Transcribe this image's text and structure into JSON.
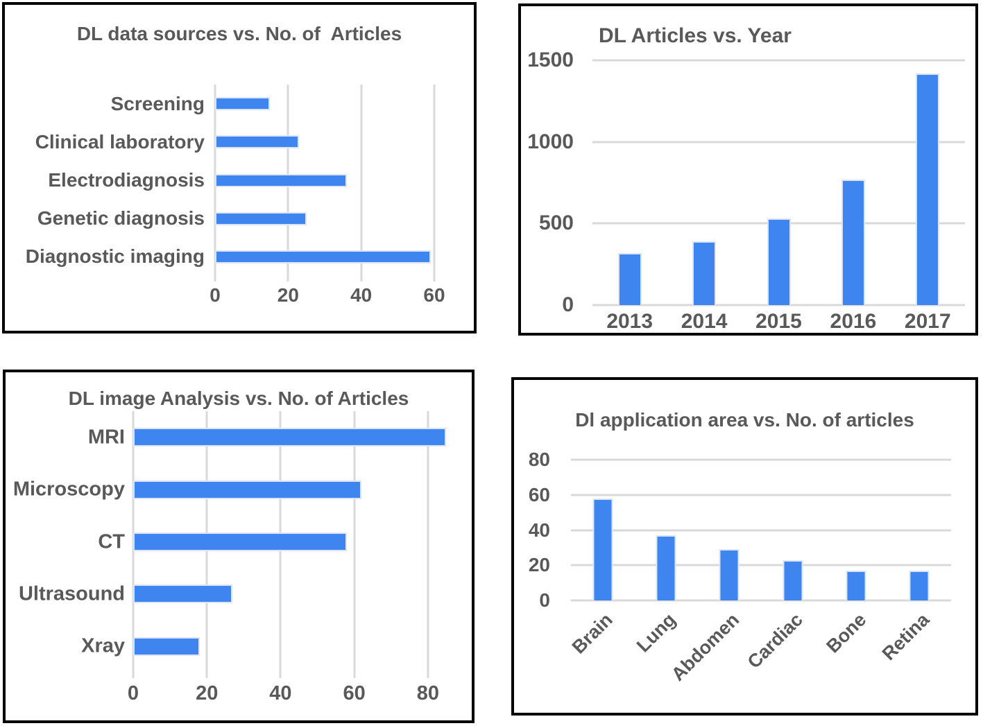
{
  "colors": {
    "bar": "#3E85F0",
    "bar-edge": "#dbe5f7",
    "grid": "#d9d9d9",
    "text": "#595959",
    "panel-border": "#000000",
    "background": "#ffffff"
  },
  "chart_data": [
    {
      "id": "sources",
      "type": "bar",
      "orientation": "horizontal",
      "title": "DL data sources vs. No. of  Articles",
      "categories": [
        "Screening",
        "Clinical laboratory",
        "Electrodiagnosis",
        "Genetic diagnosis",
        "Diagnostic imaging"
      ],
      "values": [
        15,
        23,
        36,
        25,
        59
      ],
      "xlabel": "",
      "ylabel": "",
      "xlim": [
        0,
        60
      ],
      "xticks": [
        0,
        20,
        40,
        60
      ],
      "grid": true,
      "legend": "none"
    },
    {
      "id": "years",
      "type": "bar",
      "orientation": "vertical",
      "title": "DL Articles vs. Year",
      "categories": [
        "2013",
        "2014",
        "2015",
        "2016",
        "2017"
      ],
      "values": [
        320,
        390,
        530,
        770,
        1420
      ],
      "xlabel": "",
      "ylabel": "",
      "ylim": [
        0,
        1500
      ],
      "yticks": [
        0,
        500,
        1000,
        1500
      ],
      "grid": true,
      "legend": "none"
    },
    {
      "id": "imaging",
      "type": "bar",
      "orientation": "horizontal",
      "title": "DL image Analysis vs. No. of Articles",
      "categories": [
        "MRI",
        "Microscopy",
        "CT",
        "Ultrasound",
        "Xray"
      ],
      "values": [
        85,
        62,
        58,
        27,
        18
      ],
      "xlabel": "",
      "ylabel": "",
      "xlim": [
        0,
        90
      ],
      "xticks": [
        0,
        20,
        40,
        60,
        80
      ],
      "grid": true,
      "legend": "none"
    },
    {
      "id": "areas",
      "type": "bar",
      "orientation": "vertical",
      "title": "Dl application area vs. No. of articles",
      "categories": [
        "Brain",
        "Lung",
        "Abdomen",
        "Cardiac",
        "Bone",
        "Retina"
      ],
      "values": [
        58,
        37,
        29,
        23,
        17,
        17
      ],
      "xlabel": "",
      "ylabel": "",
      "ylim": [
        0,
        80
      ],
      "yticks": [
        0,
        20,
        40,
        60,
        80
      ],
      "grid": true,
      "legend": "none",
      "x_labels_rotated": true
    }
  ]
}
